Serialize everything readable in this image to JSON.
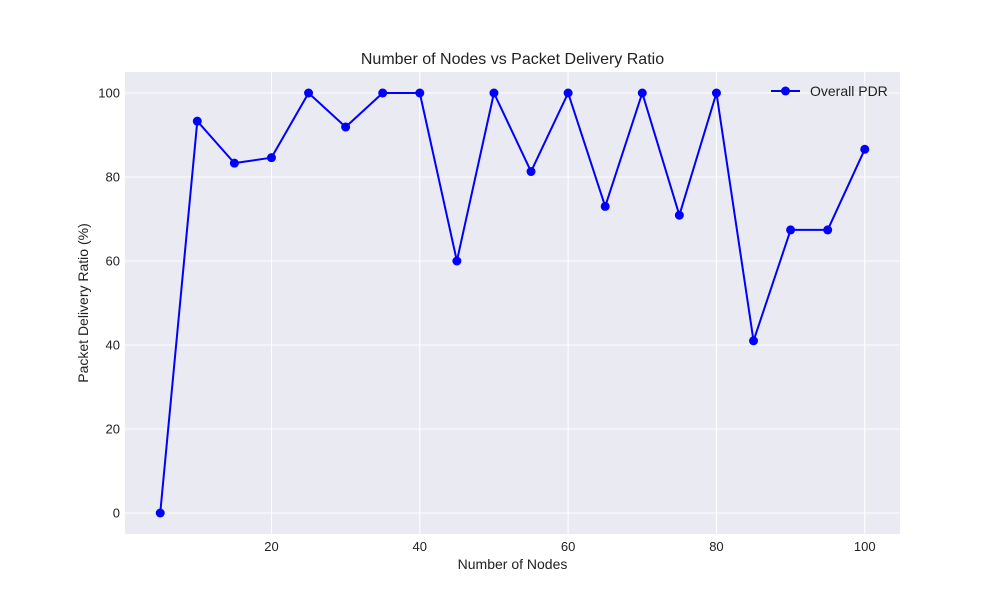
{
  "colors": {
    "plot_background": "#eaeaf2",
    "grid": "#ffffff",
    "series_line": "#0000ff",
    "text": "#222222"
  },
  "chart_data": {
    "type": "line",
    "title": "Number of Nodes vs Packet Delivery Ratio",
    "xlabel": "Number of Nodes",
    "ylabel": "Packet Delivery Ratio (%)",
    "xlim": [
      0.25,
      104.75
    ],
    "ylim": [
      -5,
      105
    ],
    "xticks": [
      20,
      40,
      60,
      80,
      100
    ],
    "yticks": [
      0,
      20,
      40,
      60,
      80,
      100
    ],
    "grid": true,
    "legend_position": "top-right",
    "series": [
      {
        "name": "Overall PDR",
        "color": "#0000ff",
        "marker": "circle",
        "x": [
          5,
          10,
          15,
          20,
          25,
          30,
          35,
          40,
          45,
          50,
          55,
          60,
          65,
          70,
          75,
          80,
          85,
          90,
          95,
          100
        ],
        "y": [
          0,
          93.3,
          83.3,
          84.6,
          100,
          91.9,
          100,
          100,
          60,
          100,
          81.3,
          100,
          73,
          100,
          70.9,
          100,
          41,
          67.4,
          67.4,
          86.6
        ]
      }
    ]
  }
}
